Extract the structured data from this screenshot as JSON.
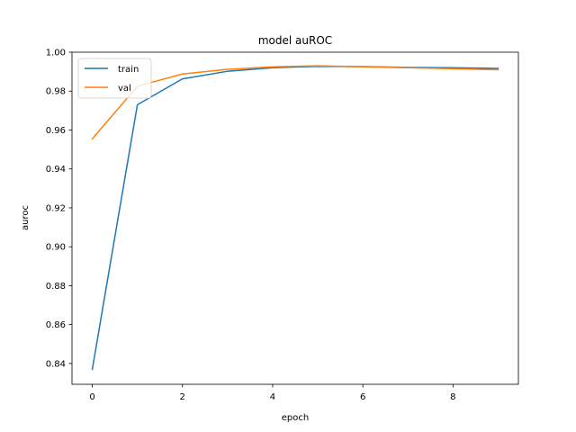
{
  "chart_data": {
    "type": "line",
    "title": "model auROC",
    "xlabel": "epoch",
    "ylabel": "auroc",
    "xlim": [
      -0.45,
      9.45
    ],
    "ylim": [
      0.8293,
      1.0
    ],
    "x_ticks": [
      0,
      2,
      4,
      6,
      8
    ],
    "y_ticks": [
      0.84,
      0.86,
      0.88,
      0.9,
      0.92,
      0.94,
      0.96,
      0.98,
      1.0
    ],
    "x_tick_labels": [
      "0",
      "2",
      "4",
      "6",
      "8"
    ],
    "y_tick_labels": [
      "0.84",
      "0.86",
      "0.88",
      "0.90",
      "0.92",
      "0.94",
      "0.96",
      "0.98",
      "1.00"
    ],
    "x": [
      0,
      1,
      2,
      3,
      4,
      5,
      6,
      7,
      8,
      9
    ],
    "series": [
      {
        "name": "train",
        "color": "#1f77b4",
        "values": [
          0.837,
          0.973,
          0.9863,
          0.9902,
          0.992,
          0.9927,
          0.9926,
          0.9922,
          0.992,
          0.9917
        ]
      },
      {
        "name": "val",
        "color": "#ff7f0e",
        "values": [
          0.9555,
          0.9825,
          0.9888,
          0.9912,
          0.9925,
          0.993,
          0.9925,
          0.992,
          0.9915,
          0.991
        ]
      }
    ],
    "legend_position": "upper-left",
    "grid": false
  }
}
